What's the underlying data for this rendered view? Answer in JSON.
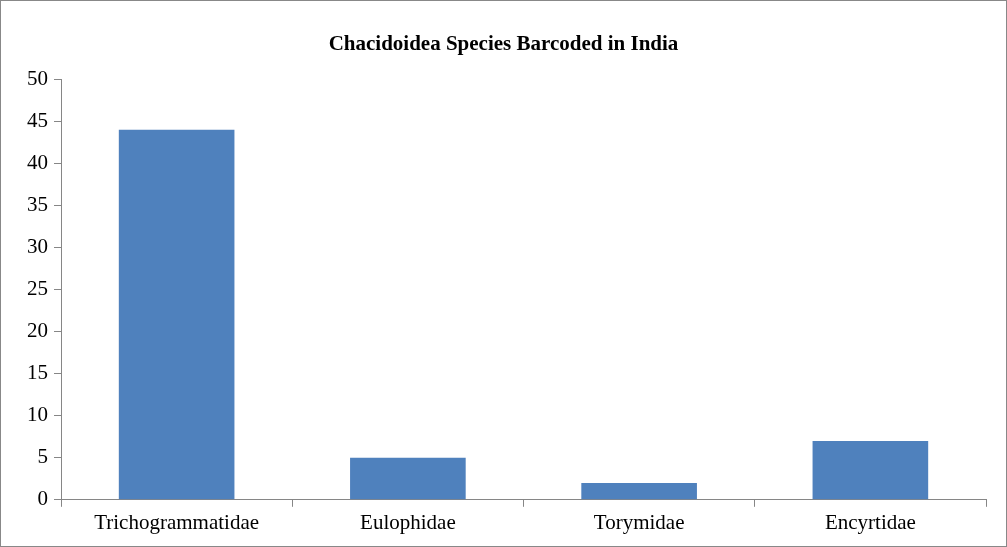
{
  "chart_data": {
    "type": "bar",
    "title": "Chacidoidea Species Barcoded in India",
    "categories": [
      "Trichogrammatidae",
      "Eulophidae",
      "Torymidae",
      "Encyrtidae"
    ],
    "values": [
      44,
      5,
      2,
      7
    ],
    "color": "#4f81bd",
    "ylim": [
      0,
      50
    ],
    "yticks": [
      0,
      5,
      10,
      15,
      20,
      25,
      30,
      35,
      40,
      45,
      50
    ],
    "grid": false,
    "legend": false
  }
}
